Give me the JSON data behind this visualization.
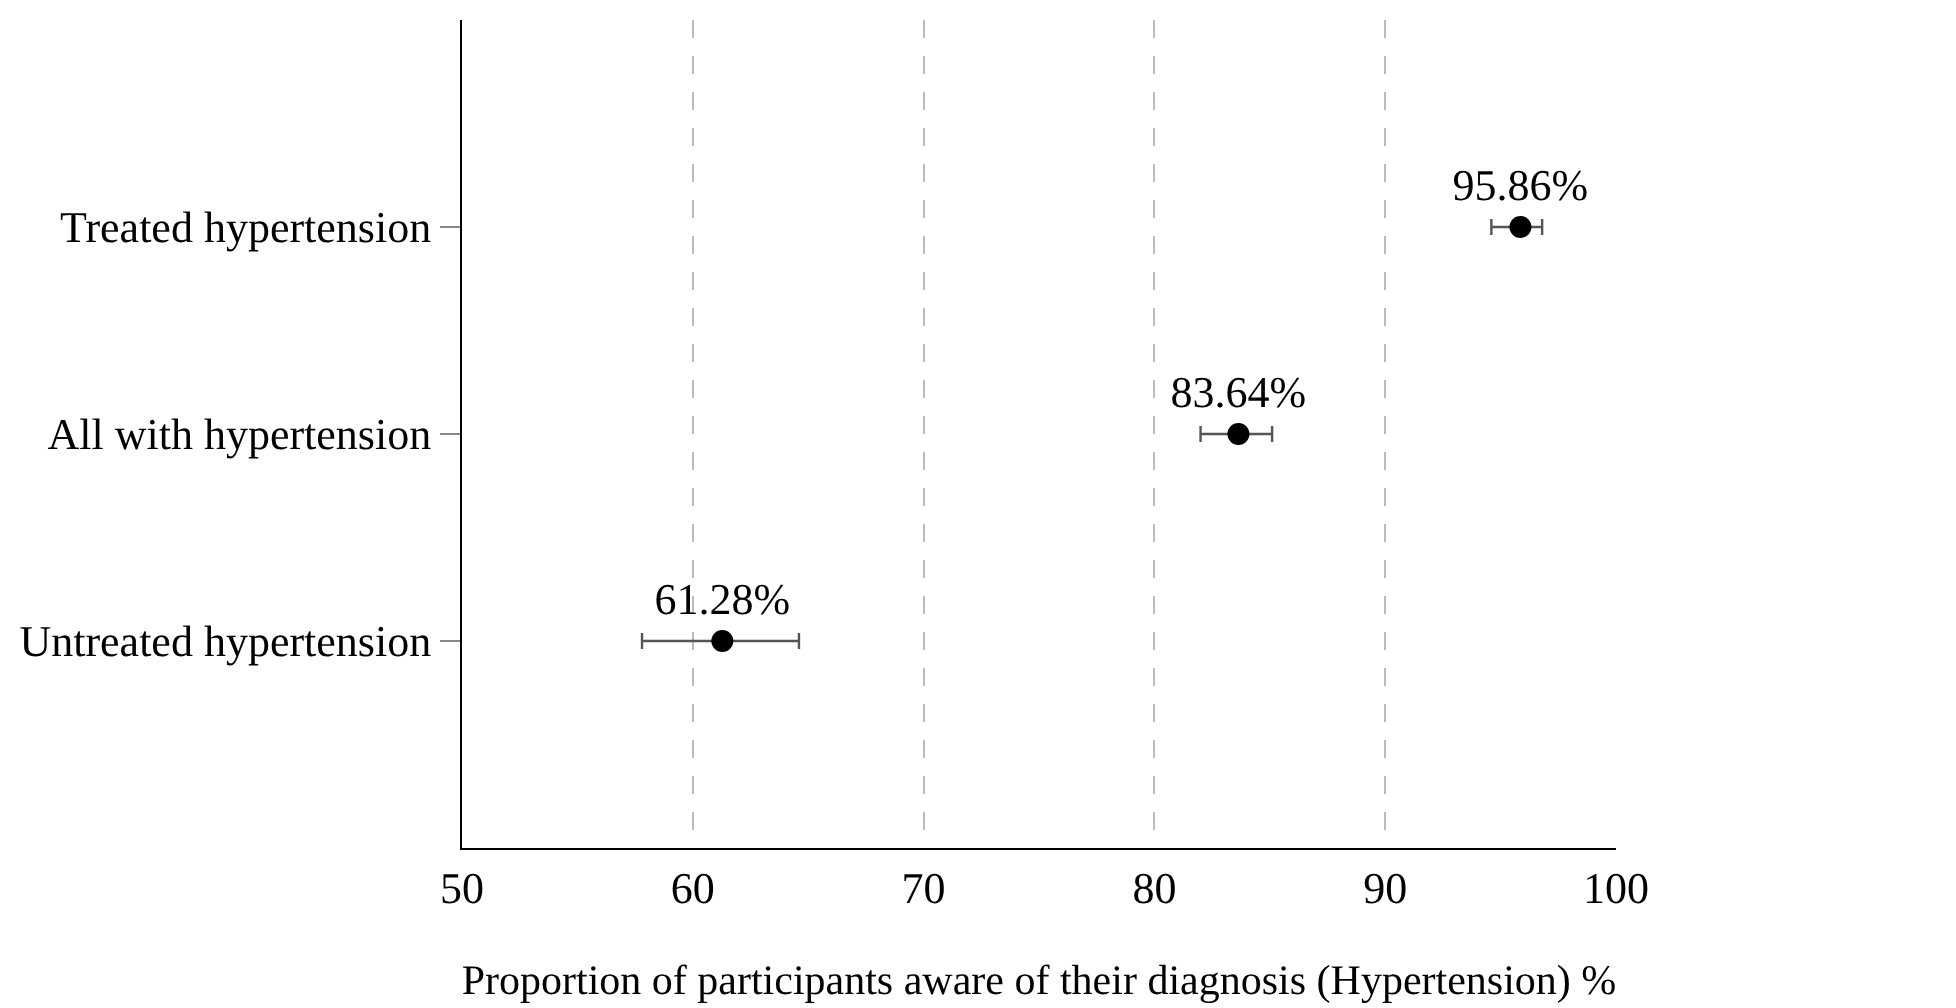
{
  "chart_data": {
    "type": "scatter",
    "orientation": "horizontal",
    "xlabel": "Proportion of participants aware of their diagnosis (Hypertension) %",
    "categories": [
      "Treated hypertension",
      "All with hypertension",
      "Untreated hypertension"
    ],
    "values": [
      95.86,
      83.64,
      61.28
    ],
    "value_labels": [
      "95.86%",
      "83.64%",
      "61.28%"
    ],
    "errors": [
      [
        94.6,
        96.8
      ],
      [
        82.0,
        85.1
      ],
      [
        57.8,
        64.6
      ]
    ],
    "color": "#000000",
    "marker": "circle",
    "xlim": [
      50,
      100
    ],
    "xticks": [
      50,
      60,
      70,
      80,
      90,
      100
    ],
    "grid": "x"
  }
}
